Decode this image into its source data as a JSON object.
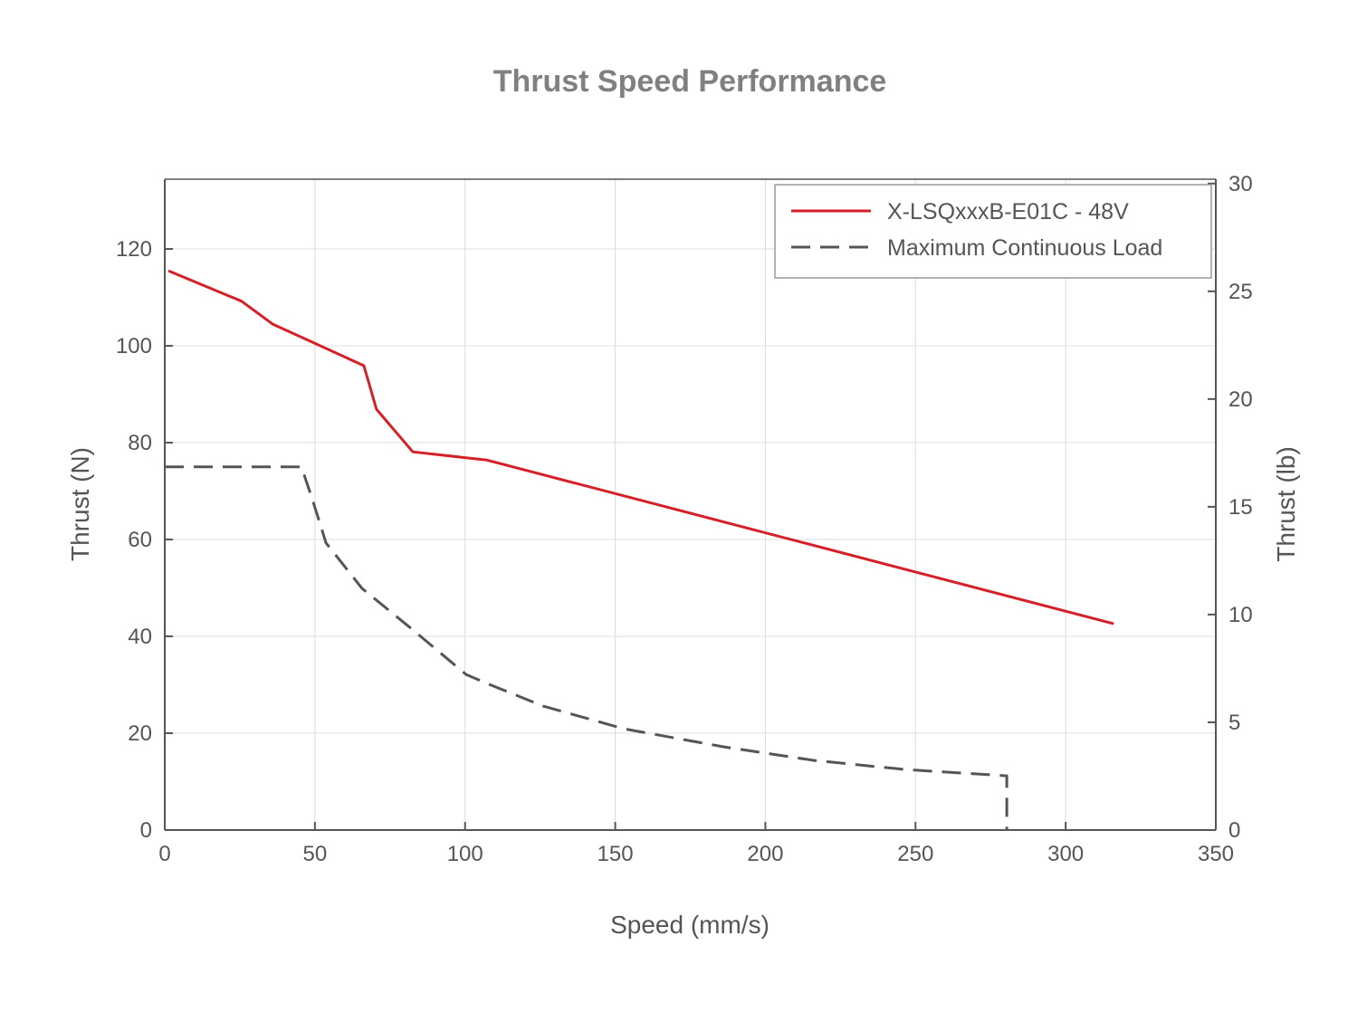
{
  "chart_data": {
    "type": "line",
    "title": "Thrust Speed Performance",
    "xlabel": "Speed (mm/s)",
    "ylabel": "Thrust (N)",
    "ylabel_right": "Thrust (lb)",
    "xlim": [
      0,
      350
    ],
    "ylim": [
      0,
      134.4
    ],
    "ylim_right": [
      0,
      30.2
    ],
    "xticks": [
      0,
      50,
      100,
      150,
      200,
      250,
      300,
      350
    ],
    "yticks": [
      0,
      20,
      40,
      60,
      80,
      100,
      120
    ],
    "yticks_right": [
      0,
      5,
      10,
      15,
      20,
      25,
      30
    ],
    "grid": true,
    "legend_position": "top-right",
    "series": [
      {
        "name": "X-LSQxxxB-E01C - 48V",
        "color": "#d42027",
        "style": "solid",
        "x": [
          1.2,
          25.6,
          35.9,
          66.3,
          70.5,
          82.6,
          107.3,
          316
        ],
        "y": [
          115.5,
          109.2,
          104.5,
          95.9,
          86.9,
          78.1,
          76.4,
          42.6
        ]
      },
      {
        "name": "Maximum Continuous Load",
        "color": "#555555",
        "style": "dashed",
        "x": [
          0,
          45.5,
          49,
          53.7,
          65.7,
          82.3,
          100.4,
          108,
          126,
          153,
          186,
          216,
          246.6,
          280.4,
          280.4
        ],
        "y": [
          75,
          75,
          68.6,
          59.3,
          49.9,
          41.5,
          32.1,
          30.1,
          25.6,
          20.9,
          17.2,
          14.4,
          12.5,
          11.2,
          0
        ]
      }
    ]
  }
}
